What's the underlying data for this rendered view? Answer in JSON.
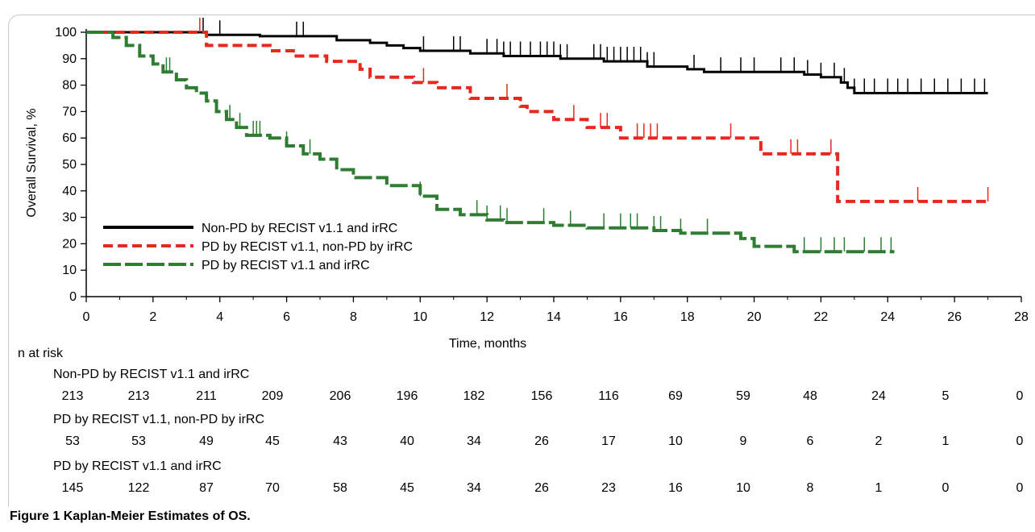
{
  "chart_data": {
    "type": "line",
    "subtype": "kaplan-meier",
    "ylabel": "Overall Survival, %",
    "xlabel": "Time, months",
    "xlim": [
      0,
      28
    ],
    "ylim": [
      0,
      100
    ],
    "xticks": [
      0,
      2,
      4,
      6,
      8,
      10,
      12,
      14,
      16,
      18,
      20,
      22,
      24,
      26,
      28
    ],
    "yticks": [
      0,
      10,
      20,
      30,
      40,
      50,
      60,
      70,
      80,
      90,
      100
    ],
    "legend_position": "left-center",
    "series": [
      {
        "name": "Non-PD by RECIST v1.1 and irRC",
        "color": "#000000",
        "style": "solid",
        "steps": [
          [
            0,
            100
          ],
          [
            3.3,
            100
          ],
          [
            3.6,
            99
          ],
          [
            4.5,
            99
          ],
          [
            5.2,
            98.5
          ],
          [
            7.5,
            97
          ],
          [
            8.5,
            96
          ],
          [
            9,
            95
          ],
          [
            9.5,
            94
          ],
          [
            10,
            93
          ],
          [
            11.5,
            92
          ],
          [
            12.5,
            91
          ],
          [
            14.2,
            90
          ],
          [
            15.5,
            89
          ],
          [
            16.8,
            87
          ],
          [
            18,
            86
          ],
          [
            18.5,
            85
          ],
          [
            21.5,
            84
          ],
          [
            22,
            83
          ],
          [
            22.6,
            81
          ],
          [
            22.8,
            79
          ],
          [
            23,
            77
          ],
          [
            27,
            77
          ]
        ],
        "censors": [
          3.5,
          4.0,
          6.3,
          6.5,
          10.1,
          11.0,
          11.2,
          12.0,
          12.3,
          12.5,
          12.7,
          13.0,
          13.3,
          13.6,
          13.8,
          14.0,
          14.2,
          14.4,
          15.2,
          15.4,
          15.6,
          15.8,
          16.0,
          16.2,
          16.4,
          16.6,
          16.8,
          17.0,
          18.2,
          19.0,
          19.6,
          20.0,
          20.8,
          21.2,
          21.6,
          22.0,
          22.4,
          22.7,
          23.0,
          23.3,
          23.6,
          24.0,
          24.3,
          24.6,
          25.0,
          25.4,
          25.8,
          26.2,
          26.6,
          26.9
        ]
      },
      {
        "name": "PD by RECIST v1.1, non-PD by irRC",
        "color": "#e8281e",
        "style": "dashed",
        "steps": [
          [
            0,
            100
          ],
          [
            3.3,
            100
          ],
          [
            3.6,
            95
          ],
          [
            5.5,
            93
          ],
          [
            6.2,
            91
          ],
          [
            7.2,
            89
          ],
          [
            8.2,
            86
          ],
          [
            8.5,
            83
          ],
          [
            9.8,
            81
          ],
          [
            10.5,
            79
          ],
          [
            11.5,
            75
          ],
          [
            13,
            72
          ],
          [
            13.2,
            70
          ],
          [
            14,
            67
          ],
          [
            15,
            64
          ],
          [
            16,
            60
          ],
          [
            20.2,
            54
          ],
          [
            22.5,
            36
          ],
          [
            27,
            36
          ]
        ],
        "censors": [
          3.4,
          10.1,
          12.6,
          14.6,
          15.4,
          15.6,
          16.5,
          16.7,
          16.9,
          17.1,
          19.3,
          21.1,
          21.3,
          22.3,
          24.9,
          27.0
        ]
      },
      {
        "name": "PD by RECIST v1.1 and irRC",
        "color": "#2e7d32",
        "style": "long-dashed",
        "steps": [
          [
            0,
            100
          ],
          [
            0.8,
            98
          ],
          [
            1.2,
            95
          ],
          [
            1.6,
            91
          ],
          [
            2.0,
            88
          ],
          [
            2.3,
            85
          ],
          [
            2.7,
            82
          ],
          [
            3.0,
            79
          ],
          [
            3.3,
            77
          ],
          [
            3.6,
            74
          ],
          [
            3.9,
            70
          ],
          [
            4.2,
            67
          ],
          [
            4.5,
            64
          ],
          [
            4.8,
            61
          ],
          [
            5.5,
            60
          ],
          [
            6.0,
            57
          ],
          [
            6.5,
            54
          ],
          [
            7.0,
            52
          ],
          [
            7.5,
            48
          ],
          [
            8.0,
            45
          ],
          [
            9.0,
            42
          ],
          [
            10.0,
            38
          ],
          [
            10.5,
            33
          ],
          [
            11.2,
            31
          ],
          [
            12.0,
            29
          ],
          [
            12.5,
            28
          ],
          [
            14.0,
            27
          ],
          [
            15.0,
            26
          ],
          [
            17.0,
            25
          ],
          [
            17.8,
            24
          ],
          [
            19.6,
            22
          ],
          [
            20.0,
            19
          ],
          [
            21.2,
            17
          ],
          [
            24.2,
            17
          ]
        ],
        "censors": [
          2.4,
          2.5,
          4.3,
          4.6,
          5.0,
          5.1,
          5.2,
          6.0,
          6.7,
          10.0,
          11.7,
          12.0,
          12.4,
          12.6,
          13.7,
          14.5,
          15.5,
          16.0,
          16.3,
          16.5,
          17.0,
          17.2,
          17.8,
          18.6,
          21.5,
          22.0,
          22.4,
          22.7,
          23.3,
          23.8,
          24.1
        ]
      }
    ],
    "risk_table": {
      "title": "n at risk",
      "timepoints": [
        0,
        2,
        4,
        6,
        8,
        10,
        12,
        14,
        16,
        18,
        20,
        22,
        24,
        26,
        28
      ],
      "rows": [
        {
          "label": "Non-PD by RECIST v1.1 and irRC",
          "values": [
            "213",
            "213",
            "211",
            "209",
            "206",
            "196",
            "182",
            "156",
            "116",
            "69",
            "59",
            "48",
            "24",
            "5",
            "0"
          ]
        },
        {
          "label": "PD by RECIST v1.1, non-PD by irRC",
          "values": [
            "53",
            "53",
            "49",
            "45",
            "43",
            "40",
            "34",
            "26",
            "17",
            "10",
            "9",
            "6",
            "2",
            "1",
            "0"
          ]
        },
        {
          "label": "PD by RECIST v1.1 and irRC",
          "values": [
            "145",
            "122",
            "87",
            "70",
            "58",
            "45",
            "34",
            "26",
            "23",
            "16",
            "10",
            "8",
            "1",
            "0",
            "0"
          ]
        }
      ]
    }
  },
  "caption": {
    "label": "Figure 1",
    "text": "Kaplan-Meier Estimates of OS."
  }
}
